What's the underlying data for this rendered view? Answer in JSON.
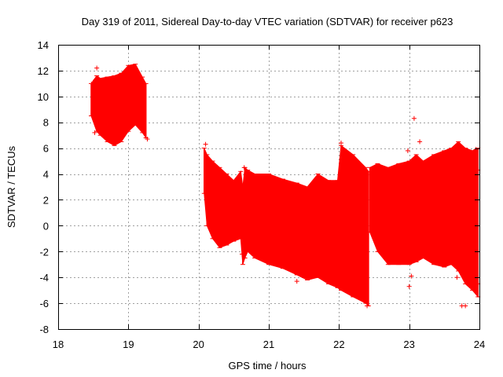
{
  "chart_data": {
    "type": "scatter",
    "title": "Day 319 of 2011, Sidereal Day-to-day VTEC variation (SDTVAR) for receiver p623",
    "xlabel": "GPS time / hours",
    "ylabel": "SDTVAR / TECUs",
    "xlim": [
      18,
      24
    ],
    "ylim": [
      -8,
      14
    ],
    "x_ticks": [
      18,
      19,
      20,
      21,
      22,
      23,
      24
    ],
    "y_ticks": [
      -8,
      -6,
      -4,
      -2,
      0,
      2,
      4,
      6,
      8,
      10,
      12,
      14
    ],
    "grid": true,
    "series_color": "#ff0000",
    "series": [
      {
        "name": "SDTVAR envelope segment 1",
        "x": [
          18.47,
          18.55,
          18.6,
          18.7,
          18.8,
          18.9,
          19.0,
          19.1,
          19.2,
          19.25
        ],
        "upper": [
          11.0,
          11.6,
          11.4,
          11.5,
          11.6,
          11.8,
          12.4,
          12.5,
          11.5,
          11.0
        ],
        "lower": [
          8.5,
          7.3,
          7.0,
          6.5,
          6.2,
          6.5,
          7.3,
          7.8,
          7.2,
          6.8
        ]
      },
      {
        "name": "SDTVAR envelope segment 2",
        "x": [
          20.08,
          20.12,
          20.2,
          20.3,
          20.4,
          20.5,
          20.6,
          20.63,
          20.66,
          20.7,
          20.8,
          21.0,
          21.2,
          21.4,
          21.55,
          21.7,
          21.85,
          21.98,
          22.03,
          22.2,
          22.38,
          22.42
        ],
        "upper": [
          6.0,
          5.5,
          5.0,
          4.5,
          4.0,
          3.5,
          4.2,
          3.0,
          4.5,
          4.3,
          4.0,
          4.0,
          3.6,
          3.3,
          3.0,
          4.0,
          3.5,
          3.5,
          6.2,
          5.5,
          4.5,
          4.2
        ],
        "lower": [
          2.5,
          0.0,
          -1.0,
          -1.7,
          -1.5,
          -1.2,
          -1.0,
          -3.0,
          -2.5,
          -2.0,
          -2.5,
          -3.0,
          -3.3,
          -3.8,
          -4.2,
          -4.0,
          -4.5,
          -4.8,
          -5.0,
          -5.5,
          -6.0,
          -6.2
        ]
      },
      {
        "name": "SDTVAR envelope segment 3",
        "x": [
          22.44,
          22.55,
          22.7,
          22.85,
          23.0,
          23.1,
          23.2,
          23.35,
          23.5,
          23.6,
          23.7,
          23.8,
          23.9,
          23.98
        ],
        "upper": [
          4.5,
          4.8,
          4.5,
          4.8,
          5.0,
          5.5,
          5.0,
          5.5,
          5.8,
          6.0,
          6.5,
          6.0,
          5.8,
          6.0
        ],
        "lower": [
          -0.5,
          -2.0,
          -3.0,
          -3.0,
          -3.0,
          -2.8,
          -2.5,
          -3.0,
          -3.2,
          -3.0,
          -3.5,
          -4.5,
          -5.0,
          -5.5
        ]
      }
    ],
    "outlier_points": [
      {
        "x": 18.5,
        "y": 11.1
      },
      {
        "x": 18.55,
        "y": 12.2
      },
      {
        "x": 18.52,
        "y": 7.2
      },
      {
        "x": 19.27,
        "y": 6.7
      },
      {
        "x": 20.1,
        "y": 6.3
      },
      {
        "x": 20.62,
        "y": -2.2
      },
      {
        "x": 20.65,
        "y": 4.5
      },
      {
        "x": 20.79,
        "y": 3.8
      },
      {
        "x": 21.4,
        "y": -4.3
      },
      {
        "x": 22.03,
        "y": 6.4
      },
      {
        "x": 22.02,
        "y": 3.5
      },
      {
        "x": 22.4,
        "y": -6.2
      },
      {
        "x": 22.98,
        "y": 5.8
      },
      {
        "x": 23.0,
        "y": -4.7
      },
      {
        "x": 23.03,
        "y": -3.9
      },
      {
        "x": 23.07,
        "y": 8.3
      },
      {
        "x": 23.15,
        "y": 6.5
      },
      {
        "x": 23.65,
        "y": -2.6
      },
      {
        "x": 23.68,
        "y": -4.0
      },
      {
        "x": 23.75,
        "y": -6.2
      },
      {
        "x": 23.8,
        "y": -6.2
      },
      {
        "x": 23.95,
        "y": 5.9
      },
      {
        "x": 23.98,
        "y": 4.3
      },
      {
        "x": 23.98,
        "y": -4.5
      }
    ]
  }
}
